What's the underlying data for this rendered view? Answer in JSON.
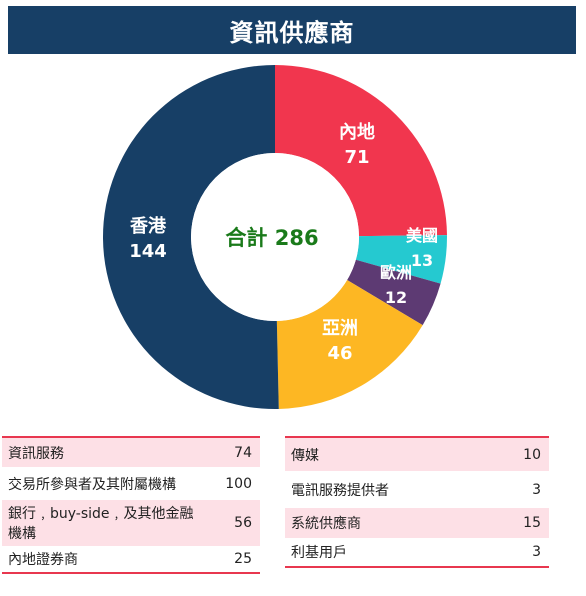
{
  "title": "資訊供應商",
  "chart_data": {
    "type": "pie",
    "center_label": "合計 286",
    "total": 286,
    "slices": [
      {
        "label": "內地",
        "value": 71,
        "color": "#f1364e"
      },
      {
        "label": "美國",
        "value": 13,
        "color": "#25c9d0"
      },
      {
        "label": "歐洲",
        "value": 12,
        "color": "#5d3a73"
      },
      {
        "label": "亞洲",
        "value": 46,
        "color": "#fdb723"
      },
      {
        "label": "香港",
        "value": 144,
        "color": "#173f66"
      }
    ]
  },
  "tables": {
    "left": [
      {
        "label": "資訊服務",
        "value": "74",
        "shaded": true
      },
      {
        "label": "交易所參與者及其附屬機構",
        "value": "100",
        "shaded": false
      },
      {
        "label": "銀行﹐buy-side﹐及其他金融機構",
        "value": "56",
        "shaded": true
      },
      {
        "label": "內地證券商",
        "value": "25",
        "shaded": false
      }
    ],
    "right": [
      {
        "label": "傳媒",
        "value": "10",
        "shaded": true
      },
      {
        "label": "電訊服務提供者",
        "value": "3",
        "shaded": false
      },
      {
        "label": "系統供應商",
        "value": "15",
        "shaded": true
      },
      {
        "label": "利基用戶",
        "value": "3",
        "shaded": false
      }
    ]
  }
}
